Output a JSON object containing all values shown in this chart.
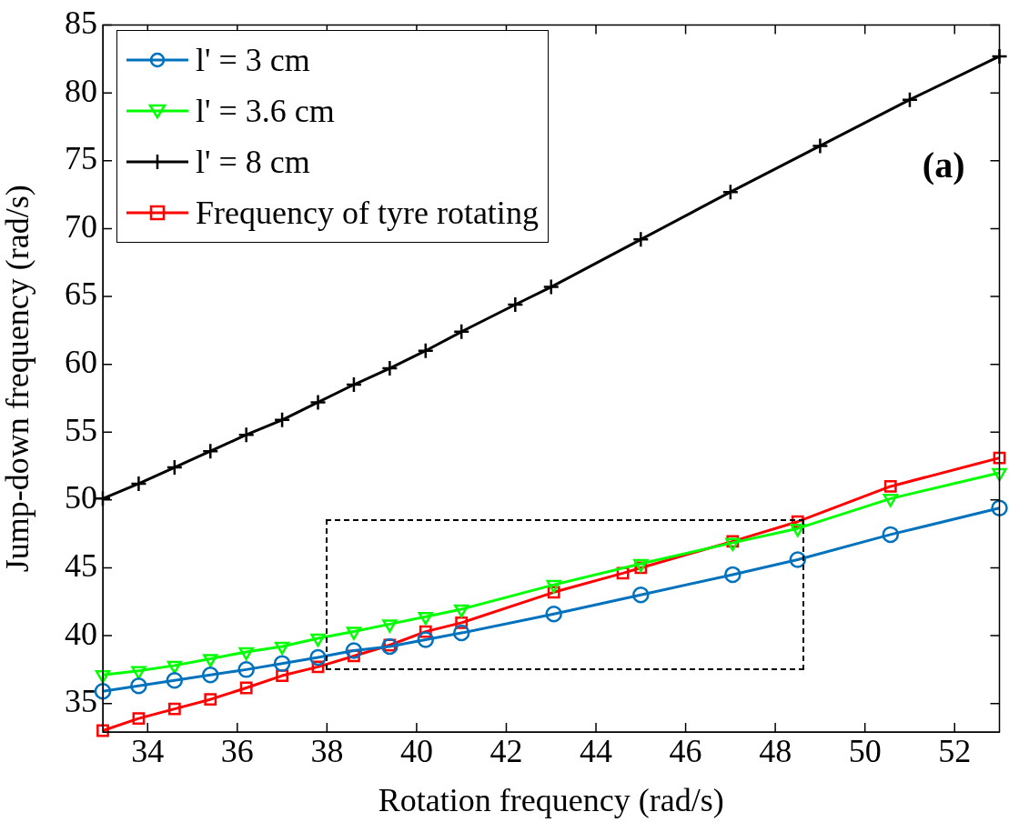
{
  "chart_data": {
    "type": "line",
    "xlabel": "Rotation frequency (rad/s)",
    "ylabel": "Jump-down frequency (rad/s)",
    "xlim": [
      33,
      53
    ],
    "xticks": [
      34,
      36,
      38,
      40,
      42,
      44,
      46,
      48,
      50,
      52
    ],
    "ylim": [
      32.9,
      85
    ],
    "yticks": [
      35,
      40,
      45,
      50,
      55,
      60,
      65,
      70,
      75,
      80,
      85
    ],
    "grid": false,
    "legend": "top left",
    "line_style": "solid",
    "annotations": [
      "(a)"
    ],
    "series": [
      {
        "name": "l' = 3 cm",
        "color": "#0072bd",
        "marker": "circle",
        "x": [
          33,
          33.8,
          34.6,
          35.4,
          36.2,
          37.0,
          37.8,
          38.6,
          39.4,
          40.2,
          41.0,
          43.06,
          45.0,
          47.05,
          48.5,
          50.57,
          53
        ],
        "values": [
          35.9,
          36.3,
          36.7,
          37.1,
          37.5,
          37.95,
          38.4,
          38.9,
          39.2,
          39.7,
          40.2,
          41.6,
          43.0,
          44.5,
          45.6,
          47.45,
          49.4
        ]
      },
      {
        "name": "l' = 3.6 cm",
        "color": "#00ff00",
        "marker": "triangle",
        "x": [
          33,
          33.8,
          34.6,
          35.4,
          36.2,
          37.0,
          37.8,
          38.6,
          39.4,
          40.2,
          41.0,
          43.06,
          45.0,
          47.05,
          48.5,
          50.57,
          53
        ],
        "values": [
          37.1,
          37.4,
          37.8,
          38.3,
          38.8,
          39.2,
          39.8,
          40.3,
          40.85,
          41.4,
          41.95,
          43.75,
          45.3,
          46.85,
          47.9,
          50.1,
          52.0
        ]
      },
      {
        "name": "l' = 8 cm",
        "color": "#000000",
        "marker": "cross",
        "x": [
          33,
          33.8,
          34.6,
          35.4,
          36.2,
          37.0,
          37.8,
          38.6,
          39.4,
          40.2,
          41.0,
          42.2,
          43.0,
          45.0,
          47.0,
          49.0,
          51.0,
          53
        ],
        "values": [
          50.1,
          51.2,
          52.4,
          53.6,
          54.8,
          55.9,
          57.2,
          58.5,
          59.7,
          61.0,
          62.4,
          64.4,
          65.7,
          69.2,
          72.7,
          76.1,
          79.5,
          82.7
        ]
      },
      {
        "name": "Frequency of tyre rotating",
        "color": "#ff0000",
        "marker": "square",
        "x": [
          33,
          33.8,
          34.6,
          35.4,
          36.2,
          37.0,
          37.8,
          38.6,
          39.4,
          40.2,
          41.0,
          43.06,
          44.6,
          45.0,
          47.05,
          48.5,
          50.57,
          53
        ],
        "values": [
          33.0,
          33.9,
          34.6,
          35.3,
          36.15,
          37.05,
          37.7,
          38.5,
          39.3,
          40.3,
          40.95,
          43.2,
          44.6,
          45.0,
          46.95,
          48.4,
          51.0,
          53.1
        ]
      }
    ]
  }
}
